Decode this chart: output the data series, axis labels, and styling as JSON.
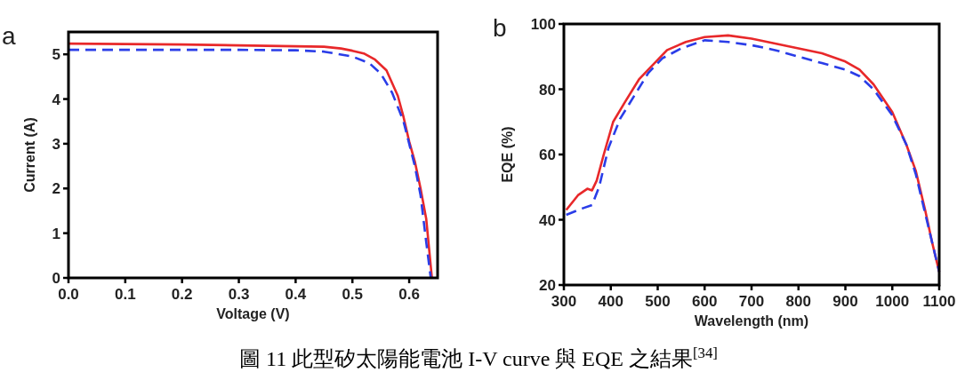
{
  "chart_data": [
    {
      "type": "line",
      "title": "a",
      "xlabel": "Voltage (V)",
      "ylabel": "Current (A)",
      "xlim": [
        0,
        0.65
      ],
      "ylim": [
        0,
        5.5
      ],
      "xticks": [
        {
          "value": 0,
          "label": "0.0"
        },
        0.1,
        0.2,
        0.3,
        0.4,
        0.5,
        0.6
      ],
      "yticks": [
        0,
        1,
        2,
        3,
        4,
        5
      ],
      "annotations": [
        "圖 11 此型矽太陽能電池 I-V curve 與 EQE 之結果$^{[34]}$"
      ],
      "series": [
        {
          "color": "#e8282a",
          "line_style": "solid",
          "x": [
            0,
            0.1,
            0.2,
            0.3,
            0.4,
            0.45,
            0.48,
            0.5,
            0.52,
            0.54,
            0.56,
            0.58,
            0.59,
            0.6,
            0.61,
            0.62,
            0.63,
            0.635,
            0.64
          ],
          "values": [
            5.24,
            5.23,
            5.22,
            5.2,
            5.18,
            5.17,
            5.13,
            5.08,
            5.02,
            4.88,
            4.64,
            4.07,
            3.6,
            3.05,
            2.6,
            2.0,
            1.32,
            0.66,
            0
          ]
        },
        {
          "color": "#2a3de8",
          "line_style": "dashed",
          "x": [
            0,
            0.1,
            0.2,
            0.3,
            0.4,
            0.45,
            0.5,
            0.53,
            0.55,
            0.57,
            0.59,
            0.6,
            0.61,
            0.62,
            0.63,
            0.638
          ],
          "values": [
            5.1,
            5.1,
            5.1,
            5.1,
            5.09,
            5.06,
            4.95,
            4.8,
            4.57,
            4.14,
            3.5,
            3.0,
            2.5,
            1.85,
            0.8,
            0
          ]
        }
      ]
    },
    {
      "type": "line",
      "title": "b",
      "xlabel": "Wavelength (nm)",
      "ylabel": "EQE (%)",
      "xlim": [
        300,
        1100
      ],
      "ylim": [
        20,
        100
      ],
      "xticks": [
        300,
        400,
        500,
        600,
        700,
        800,
        900,
        1000,
        1100
      ],
      "yticks": [
        20,
        40,
        60,
        80,
        100
      ],
      "series": [
        {
          "color": "#e8282a",
          "line_style": "solid",
          "x": [
            305,
            330,
            350,
            360,
            370,
            385,
            405,
            430,
            460,
            500,
            520,
            560,
            600,
            650,
            700,
            750,
            800,
            850,
            900,
            930,
            960,
            1000,
            1030,
            1050,
            1070,
            1085,
            1100
          ],
          "values": [
            43,
            47.5,
            49.5,
            49,
            52,
            60,
            70,
            76,
            83,
            89,
            92,
            94.5,
            96,
            96.5,
            95.5,
            94,
            92.5,
            91,
            88.5,
            86,
            81.5,
            73,
            63,
            55,
            43,
            33,
            24
          ]
        },
        {
          "color": "#2a3de8",
          "line_style": "dashed",
          "x": [
            305,
            340,
            360,
            375,
            395,
            420,
            450,
            480,
            510,
            550,
            600,
            650,
            700,
            750,
            800,
            850,
            900,
            930,
            960,
            1000,
            1030,
            1050,
            1070,
            1085,
            1100
          ],
          "values": [
            41.5,
            43.5,
            44.5,
            50,
            62,
            71,
            78,
            85,
            89.5,
            92.5,
            95,
            94.5,
            93.5,
            92,
            90,
            88,
            86,
            84,
            80,
            72,
            63,
            54,
            42,
            33,
            24
          ]
        }
      ]
    }
  ]
}
